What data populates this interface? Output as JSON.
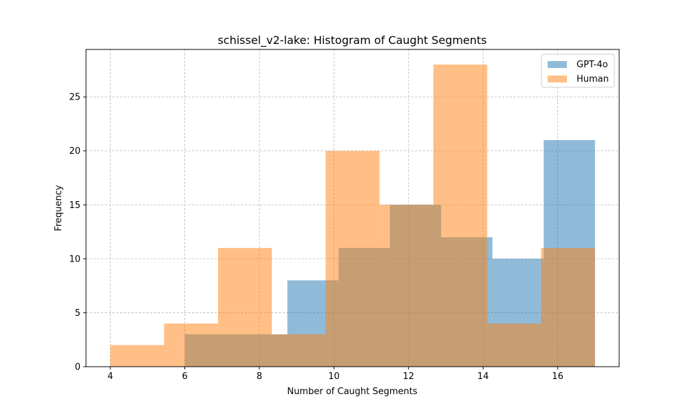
{
  "chart_data": {
    "type": "bar",
    "title": "schissel_v2-lake: Histogram of Caught Segments",
    "xlabel": "Number of Caught Segments",
    "ylabel": "Frequency",
    "xlim": [
      3.35,
      17.65
    ],
    "ylim": [
      0,
      29.4
    ],
    "xticks": [
      4,
      6,
      8,
      10,
      12,
      14,
      16
    ],
    "yticks": [
      0,
      5,
      10,
      15,
      20,
      25
    ],
    "grid": true,
    "legend_position": "top-right",
    "alpha": 0.5,
    "series": [
      {
        "name": "GPT-4o",
        "color": "#1f77b4",
        "bins": [
          6.0,
          7.375,
          8.75,
          10.125,
          11.5,
          12.875,
          14.25,
          15.625,
          17.0
        ],
        "values": [
          3,
          3,
          8,
          11,
          15,
          12,
          10,
          21
        ],
        "_note": "8 bins: [6,7.375):3 [7.375,8.75):3 [8.75,10.125):8 [10.125,11.5):11 [11.5,12.875):15 [12.875,14.25):12 [14.25,15.625):10 [15.625,17]:21"
      },
      {
        "name": "Human",
        "color": "#ff7f0e",
        "bins": [
          4.0,
          5.4444,
          6.8889,
          8.3333,
          9.7778,
          11.2222,
          12.6667,
          14.1111,
          15.5556,
          17.0
        ],
        "values": [
          2,
          4,
          11,
          3,
          20,
          15,
          28,
          4,
          11
        ]
      }
    ]
  }
}
